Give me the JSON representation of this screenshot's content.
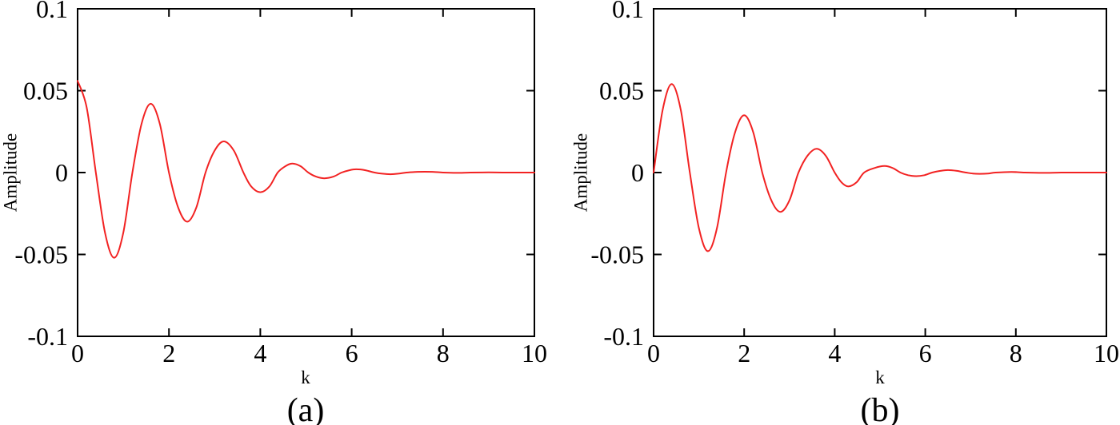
{
  "figure": {
    "background": "#ffffff",
    "text_color": "#000000",
    "axis_color": "#000000"
  },
  "chart_data": [
    {
      "id": "a",
      "type": "line",
      "caption": "(a)",
      "xlabel": "k",
      "ylabel": "Amplitude",
      "xlim": [
        0,
        10
      ],
      "ylim": [
        -0.1,
        0.1
      ],
      "grid": false,
      "legend": "none",
      "x_ticks": [
        0,
        2,
        4,
        6,
        8,
        10
      ],
      "x_tick_labels": [
        "0",
        "2",
        "4",
        "6",
        "8",
        "10"
      ],
      "y_ticks": [
        0.1,
        0.05,
        0,
        -0.05,
        -0.1
      ],
      "y_tick_labels": [
        "0.1",
        "0.05",
        "0",
        "-0.05",
        "-0.1"
      ],
      "line_color": "#f22222",
      "points": [
        [
          0,
          0.056
        ],
        [
          0.2,
          0.0396
        ],
        [
          0.4,
          0
        ],
        [
          0.6,
          -0.0368
        ],
        [
          0.8,
          -0.052
        ],
        [
          1.0,
          -0.0368
        ],
        [
          1.2,
          0
        ],
        [
          1.4,
          0.0297
        ],
        [
          1.6,
          0.042
        ],
        [
          1.8,
          0.0297
        ],
        [
          2.0,
          0
        ],
        [
          2.2,
          -0.0212
        ],
        [
          2.4,
          -0.03
        ],
        [
          2.6,
          -0.0212
        ],
        [
          2.8,
          0
        ],
        [
          3.0,
          0.0134
        ],
        [
          3.2,
          0.019
        ],
        [
          3.42,
          0.0134
        ],
        [
          3.63,
          0
        ],
        [
          3.8,
          -0.0085
        ],
        [
          4.0,
          -0.012
        ],
        [
          4.2,
          -0.0085
        ],
        [
          4.38,
          0
        ],
        [
          4.55,
          0.0039
        ],
        [
          4.7,
          0.0055
        ],
        [
          4.88,
          0.0039
        ],
        [
          5.05,
          0
        ],
        [
          5.22,
          -0.0025
        ],
        [
          5.4,
          -0.0035
        ],
        [
          5.6,
          -0.0025
        ],
        [
          5.78,
          0
        ],
        [
          5.95,
          0.0014
        ],
        [
          6.1,
          0.002
        ],
        [
          6.3,
          0.0014
        ],
        [
          6.5,
          0
        ],
        [
          6.67,
          -0.0007
        ],
        [
          6.85,
          -0.001
        ],
        [
          7.02,
          -0.0007
        ],
        [
          7.2,
          0
        ],
        [
          7.4,
          0.0004
        ],
        [
          7.6,
          0.0005
        ],
        [
          7.8,
          0.0004
        ],
        [
          8.0,
          0
        ],
        [
          8.3,
          -0.0002
        ],
        [
          8.6,
          0
        ],
        [
          9.0,
          0.0001
        ],
        [
          9.4,
          0
        ],
        [
          10,
          0
        ]
      ]
    },
    {
      "id": "b",
      "type": "line",
      "caption": "(b)",
      "xlabel": "k",
      "ylabel": "Amplitude",
      "xlim": [
        0,
        10
      ],
      "ylim": [
        -0.1,
        0.1
      ],
      "grid": false,
      "legend": "none",
      "x_ticks": [
        0,
        2,
        4,
        6,
        8,
        10
      ],
      "x_tick_labels": [
        "0",
        "2",
        "4",
        "6",
        "8",
        "10"
      ],
      "y_ticks": [
        0.1,
        0.05,
        0,
        -0.05,
        -0.1
      ],
      "y_tick_labels": [
        "0.1",
        "0.05",
        "0",
        "-0.05",
        "-0.1"
      ],
      "line_color": "#f22222",
      "points": [
        [
          0,
          0
        ],
        [
          0.2,
          0.0382
        ],
        [
          0.4,
          0.054
        ],
        [
          0.6,
          0.0382
        ],
        [
          0.8,
          0
        ],
        [
          1.0,
          -0.0339
        ],
        [
          1.2,
          -0.048
        ],
        [
          1.4,
          -0.0339
        ],
        [
          1.6,
          0
        ],
        [
          1.8,
          0.0247
        ],
        [
          2.0,
          0.035
        ],
        [
          2.2,
          0.0247
        ],
        [
          2.4,
          0
        ],
        [
          2.6,
          -0.017
        ],
        [
          2.8,
          -0.024
        ],
        [
          3.0,
          -0.017
        ],
        [
          3.2,
          0
        ],
        [
          3.4,
          0.0103
        ],
        [
          3.6,
          0.0145
        ],
        [
          3.8,
          0.0103
        ],
        [
          4.0,
          0
        ],
        [
          4.15,
          -0.006
        ],
        [
          4.3,
          -0.0085
        ],
        [
          4.48,
          -0.006
        ],
        [
          4.65,
          0
        ],
        [
          4.88,
          0.0028
        ],
        [
          5.1,
          0.004
        ],
        [
          5.28,
          0.0028
        ],
        [
          5.45,
          0
        ],
        [
          5.62,
          -0.0016
        ],
        [
          5.8,
          -0.0022
        ],
        [
          5.98,
          -0.0016
        ],
        [
          6.15,
          0
        ],
        [
          6.33,
          0.001
        ],
        [
          6.5,
          0.0015
        ],
        [
          6.7,
          0.001
        ],
        [
          6.9,
          0
        ],
        [
          7.05,
          -0.0006
        ],
        [
          7.2,
          -0.0008
        ],
        [
          7.38,
          -0.0006
        ],
        [
          7.55,
          0
        ],
        [
          7.9,
          0.0004
        ],
        [
          8.2,
          0
        ],
        [
          8.6,
          -0.0002
        ],
        [
          9.0,
          0
        ],
        [
          9.5,
          0
        ],
        [
          10,
          0
        ]
      ]
    }
  ]
}
